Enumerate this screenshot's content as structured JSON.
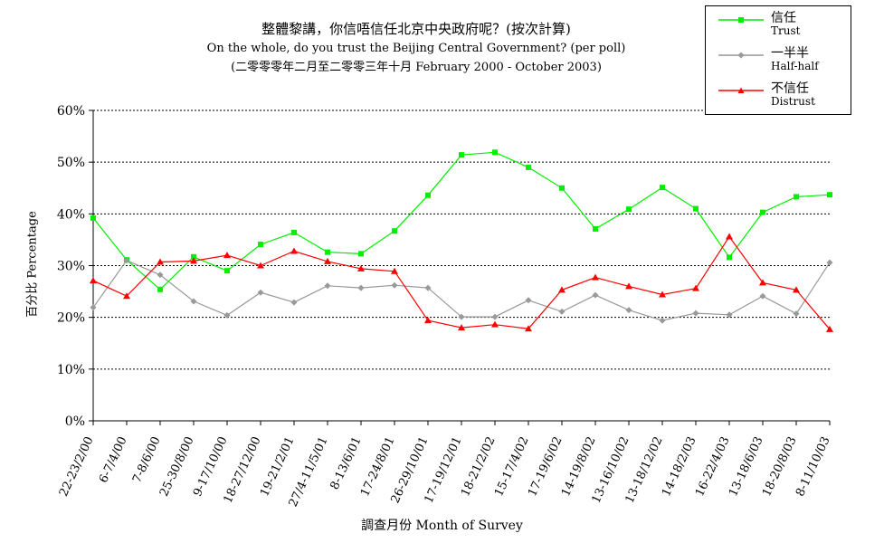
{
  "title": {
    "line1": "整體黎講，你信唔信任北京中央政府呢？(按次計算)",
    "line2": "On the whole, do you trust the Beijing Central Government?  (per poll)",
    "line3": "(二零零零年二月至二零零三年十月 February 2000 - October 2003)"
  },
  "chart_data": {
    "type": "line",
    "title": "整體黎講，你信唔信任北京中央政府呢？(按次計算)",
    "xlabel": "調查月份 Month of Survey",
    "ylabel": "百分比 Percentage",
    "ylim": [
      0,
      60
    ],
    "yticks": [
      "0%",
      "10%",
      "20%",
      "30%",
      "40%",
      "50%",
      "60%"
    ],
    "grid": true,
    "legend_position": "top-right",
    "categories": [
      "22-23/2/00",
      "6-7/4/00",
      "7-8/6/00",
      "25-30/8/00",
      "9-17/10/00",
      "18-27/12/00",
      "19-21/2/01",
      "27/4-11/5/01",
      "8-13/6/01",
      "17-24/8/01",
      "26-29/10/01",
      "17-19/12/01",
      "18-21/2/02",
      "15-17/4/02",
      "17-19/6/02",
      "14-19/8/02",
      "13-16/10/02",
      "13-18/12/02",
      "14-18/2/03",
      "16-22/4/03",
      "13-18/6/03",
      "18-20/8/03",
      "8-11/10/03"
    ],
    "series": [
      {
        "name": "信任",
        "name_en": "Trust",
        "color": "#00ee00",
        "marker": "square",
        "values": [
          39.2,
          31.1,
          25.4,
          31.7,
          29.0,
          34.1,
          36.4,
          32.6,
          32.3,
          36.7,
          43.6,
          51.4,
          51.9,
          49.0,
          45.0,
          37.1,
          40.9,
          45.1,
          41.0,
          31.6,
          40.3,
          43.3,
          43.7
        ]
      },
      {
        "name": "一半半",
        "name_en": "Half-half",
        "color": "#999999",
        "marker": "diamond",
        "values": [
          21.9,
          31.0,
          28.2,
          23.1,
          20.4,
          24.8,
          22.9,
          26.1,
          25.7,
          26.2,
          25.7,
          20.1,
          20.1,
          23.3,
          21.1,
          24.3,
          21.4,
          19.4,
          20.8,
          20.5,
          24.1,
          20.7,
          30.6
        ]
      },
      {
        "name": "不信任",
        "name_en": "Distrust",
        "color": "#ff0000",
        "marker": "triangle",
        "values": [
          27.1,
          24.1,
          30.7,
          30.9,
          32.0,
          30.0,
          32.8,
          30.8,
          29.4,
          28.9,
          19.4,
          18.0,
          18.6,
          17.8,
          25.3,
          27.7,
          26.0,
          24.4,
          25.6,
          35.6,
          26.7,
          25.3,
          17.7
        ]
      }
    ]
  }
}
